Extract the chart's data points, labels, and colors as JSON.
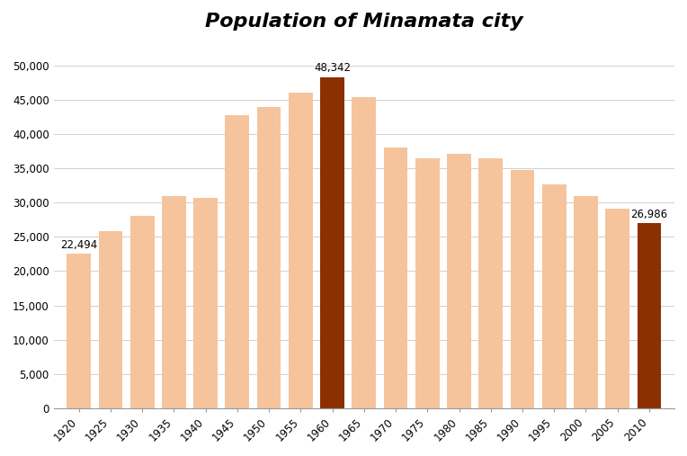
{
  "title": "Population of Minamata city",
  "years": [
    1920,
    1925,
    1930,
    1935,
    1940,
    1945,
    1950,
    1955,
    1960,
    1965,
    1970,
    1975,
    1980,
    1985,
    1990,
    1995,
    2000,
    2005,
    2010
  ],
  "values": [
    22494,
    25800,
    28000,
    30900,
    30700,
    42800,
    43900,
    46100,
    48342,
    45400,
    38000,
    36500,
    37100,
    36500,
    34700,
    32700,
    31000,
    29100,
    26986
  ],
  "bar_color_normal": "#F5C49C",
  "bar_color_highlight": "#8B3000",
  "highlight_indices": [
    8,
    18
  ],
  "annotate_indices": [
    0,
    8,
    18
  ],
  "annotations": [
    "22,494",
    "48,342",
    "26,986"
  ],
  "ylim": [
    0,
    52000
  ],
  "ytick_step": 5000,
  "background_color": "#ffffff",
  "title_fontsize": 16,
  "tick_fontsize": 8.5,
  "bar_width": 3.8
}
